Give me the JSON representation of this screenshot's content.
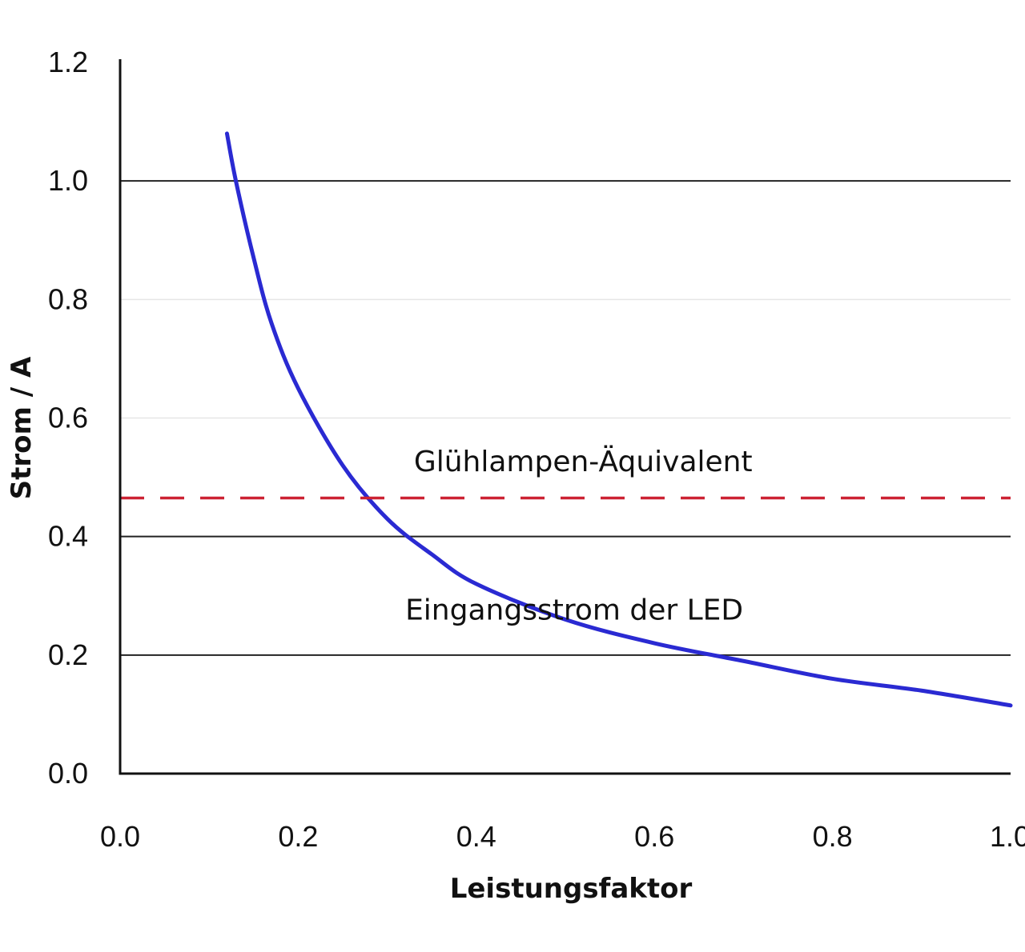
{
  "chart_data": {
    "type": "line",
    "xlabel": "Leistungsfaktor",
    "ylabel": "Strom / A",
    "xlim": [
      0,
      1.0
    ],
    "ylim": [
      0,
      1.2
    ],
    "x_ticks": [
      "0.0",
      "0.2",
      "0.4",
      "0.6",
      "0.8",
      "1.0"
    ],
    "y_ticks": [
      "0.0",
      "0.2",
      "0.4",
      "0.6",
      "0.8",
      "1.0",
      "1.2"
    ],
    "grid": "horizontal",
    "series": [
      {
        "name": "Eingangsstrom der LED",
        "color": "#2a2ad2",
        "x": [
          0.12,
          0.13,
          0.15,
          0.17,
          0.2,
          0.25,
          0.3,
          0.35,
          0.4,
          0.5,
          0.6,
          0.7,
          0.8,
          0.9,
          1.0
        ],
        "y": [
          1.08,
          1.0,
          0.87,
          0.76,
          0.65,
          0.52,
          0.43,
          0.37,
          0.32,
          0.26,
          0.22,
          0.19,
          0.16,
          0.14,
          0.115
        ]
      },
      {
        "name": "Glühlampen-Äquivalent",
        "color": "#cc2233",
        "style": "dashed",
        "x": [
          0.0,
          1.0
        ],
        "y": [
          0.465,
          0.465
        ]
      }
    ],
    "annotations": [
      {
        "text": "Glühlampen-Äquivalent",
        "x": 0.52,
        "y": 0.51
      },
      {
        "text": "Eingangsstrom der LED",
        "x": 0.51,
        "y": 0.26
      }
    ]
  }
}
